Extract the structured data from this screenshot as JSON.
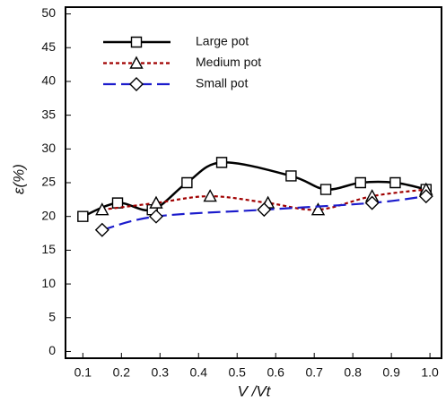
{
  "chart_data": {
    "type": "line",
    "x_label": "V /Vt",
    "y_label": "ε(%)",
    "xlim": [
      0.055,
      1.03
    ],
    "ylim": [
      -1,
      51
    ],
    "xticks": [
      0.1,
      0.2,
      0.3,
      0.4,
      0.5,
      0.6,
      0.7,
      0.8,
      0.9,
      {
        "value": 1,
        "label": "1.0"
      }
    ],
    "yticks": [
      0,
      5,
      10,
      15,
      20,
      25,
      30,
      35,
      40,
      45,
      50
    ],
    "legend": "upper left",
    "series": [
      {
        "name": "Large pot",
        "color": "#000000",
        "dash": "solid",
        "marker": "square",
        "x": [
          0.1,
          0.19,
          0.28,
          0.37,
          0.46,
          0.64,
          0.73,
          0.82,
          0.91,
          0.99
        ],
        "values": [
          20,
          22,
          21,
          25,
          28,
          26,
          24,
          25,
          25,
          24
        ]
      },
      {
        "name": "Medium pot",
        "color": "#a00000",
        "dash": "dotted",
        "marker": "triangle",
        "x": [
          0.15,
          0.29,
          0.43,
          0.58,
          0.71,
          0.85,
          0.99
        ],
        "values": [
          21,
          22,
          23,
          22,
          21,
          23,
          24
        ]
      },
      {
        "name": "Small pot",
        "color": "#1c1ccc",
        "dash": "dashed",
        "marker": "diamond",
        "x": [
          0.15,
          0.29,
          0.57,
          0.85,
          0.99
        ],
        "values": [
          18,
          20,
          21,
          22,
          23
        ]
      }
    ]
  }
}
